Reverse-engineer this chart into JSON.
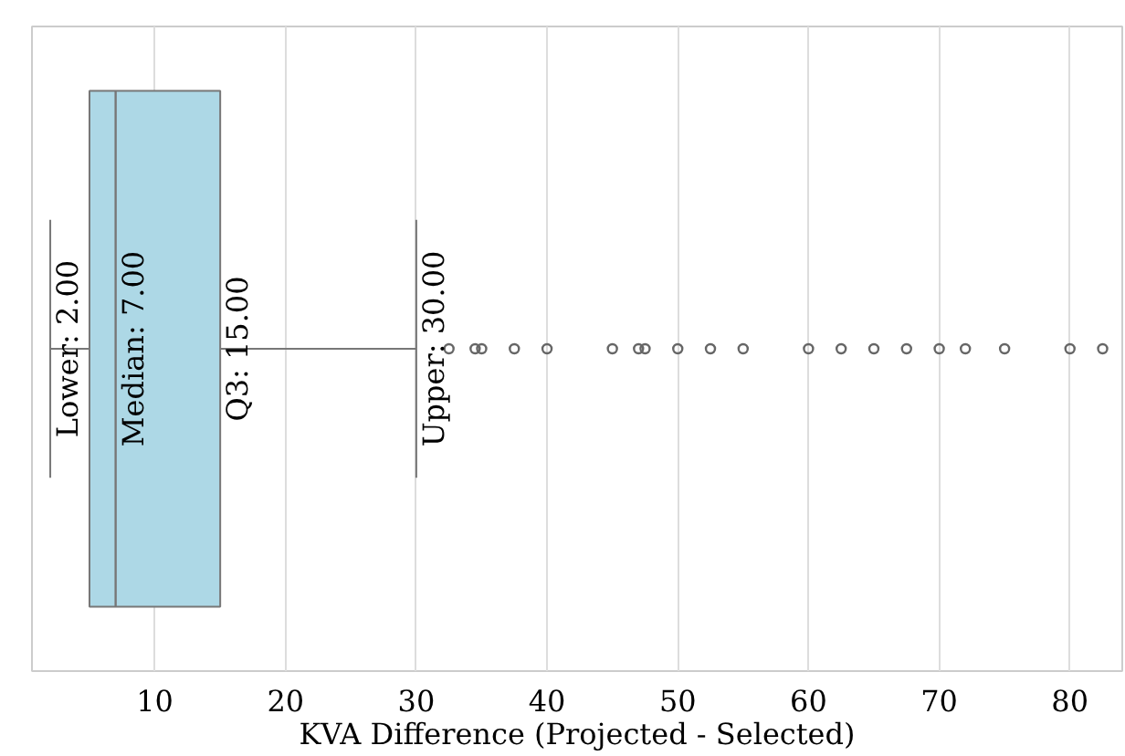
{
  "chart_data": {
    "type": "box",
    "orientation": "horizontal",
    "categories": [
      null
    ],
    "color": "#add8e6",
    "boxes": [
      {
        "low": 2,
        "q1": 5,
        "median": 7,
        "q3": 15,
        "high": 30,
        "outliers": [
          32.5,
          34.5,
          35,
          37.5,
          40,
          45,
          47,
          47.5,
          50,
          52.5,
          55,
          60,
          62.5,
          65,
          67.5,
          70,
          72,
          75,
          80,
          82.5
        ]
      }
    ],
    "xlabel": "KVA Difference (Projected - Selected)",
    "xlim": [
      0.6,
      84
    ],
    "xticks": [
      10,
      20,
      30,
      40,
      50,
      60,
      70,
      80
    ],
    "grid": "x",
    "annotations": [
      {
        "text": "Lower: 2.00",
        "x": 2
      },
      {
        "text": "Median: 7.00",
        "x": 7
      },
      {
        "text": "Q3: 15.00",
        "x": 15
      },
      {
        "text": "Upper: 30.00",
        "x": 30
      }
    ]
  }
}
